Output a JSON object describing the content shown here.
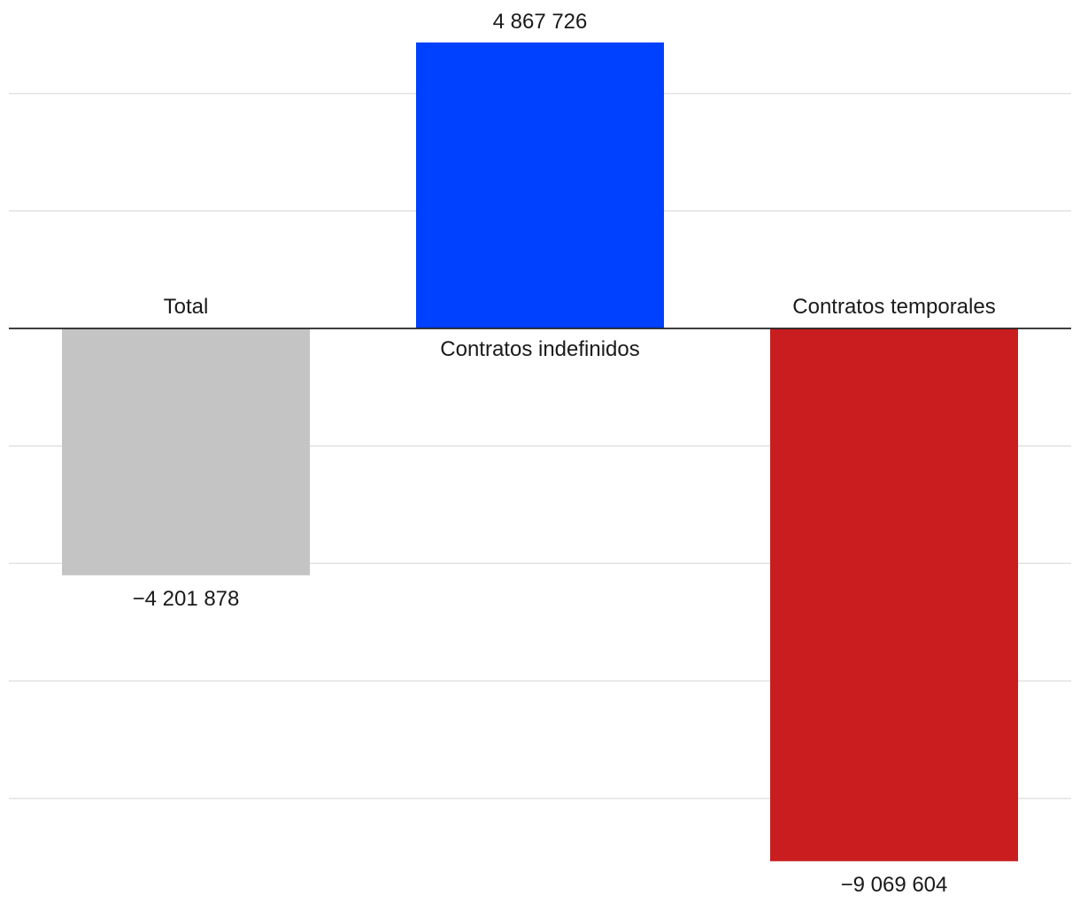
{
  "chart_data": {
    "type": "bar",
    "title": "",
    "xlabel": "",
    "ylabel": "",
    "categories": [
      "Total",
      "Contratos indefinidos",
      "Contratos temporales"
    ],
    "values": [
      -4201878,
      4867726,
      -9069604
    ],
    "value_labels": [
      "−4 201 878",
      "4 867 726",
      "−9 069 604"
    ],
    "colors": [
      "#c4c4c4",
      "#0040ff",
      "#c91d1f"
    ],
    "ylim": [
      -11000000,
      6000000
    ],
    "gridline_values": [
      4000000,
      2000000,
      -2000000,
      -4000000,
      -6000000,
      -8000000
    ],
    "grid": true,
    "legend": "none"
  }
}
